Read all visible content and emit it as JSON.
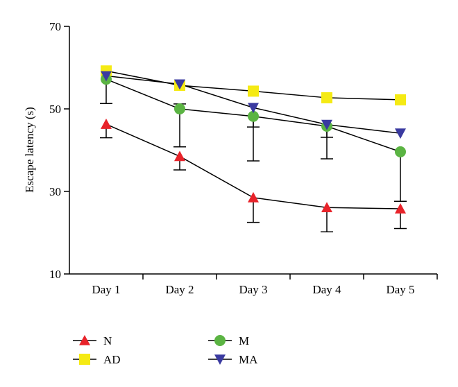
{
  "chart_data": {
    "type": "line",
    "title": "",
    "xlabel": "",
    "ylabel": "Escape latency (s)",
    "categories": [
      "Day 1",
      "Day 2",
      "Day 3",
      "Day 4",
      "Day 5"
    ],
    "ylim": [
      10,
      70
    ],
    "yticks": [
      "10",
      "30",
      "50",
      "70"
    ],
    "grid": false,
    "legend_position": "bottom",
    "series": [
      {
        "name": "N",
        "marker": "triangle-up",
        "color": "#e8232a",
        "values": [
          46.3,
          38.5,
          28.5,
          26.1,
          25.8
        ],
        "error_low": [
          43.0,
          35.2,
          22.5,
          20.2,
          21.0
        ],
        "error_high": null
      },
      {
        "name": "AD",
        "marker": "square",
        "color": "#f5ea14",
        "values": [
          59.2,
          55.7,
          54.3,
          52.7,
          52.2
        ],
        "error_low": null,
        "error_high": null
      },
      {
        "name": "M",
        "marker": "circle",
        "color": "#5bb443",
        "values": [
          57.2,
          50.0,
          48.2,
          45.8,
          39.6
        ],
        "error_low": [
          51.3,
          40.8,
          37.4,
          37.9,
          27.6
        ],
        "error_high": [
          null,
          51.2,
          null,
          null,
          null
        ]
      },
      {
        "name": "MA",
        "marker": "triangle-down",
        "color": "#3a3aa0",
        "values": [
          58.0,
          56.0,
          50.3,
          46.2,
          44.1
        ],
        "error_low": [
          null,
          null,
          45.6,
          43.1,
          null
        ],
        "error_high": null
      }
    ]
  }
}
